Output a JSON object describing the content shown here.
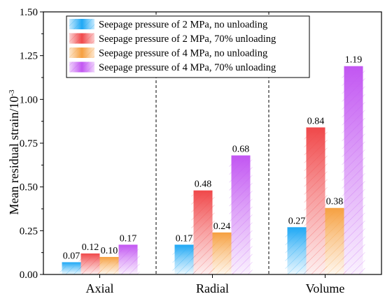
{
  "chart_data": {
    "type": "bar",
    "categories": [
      "Axial",
      "Radial",
      "Volume"
    ],
    "ylabel": "Mean residual strain/10",
    "ylabel_exponent": "-3",
    "xlabel": "",
    "ylim": [
      0,
      1.5
    ],
    "yticks": [
      "0.00",
      "0.25",
      "0.50",
      "0.75",
      "1.00",
      "1.25",
      "1.50"
    ],
    "grid": false,
    "legend_position": "top-left",
    "series": [
      {
        "name": "Seepage pressure of 2 MPa, no unloading",
        "values": [
          0.07,
          0.17,
          0.27
        ],
        "labels": [
          "0.07",
          "0.17",
          "0.27"
        ],
        "color": "#1ea8f5"
      },
      {
        "name": "Seepage pressure of 2 MPa, 70% unloading",
        "values": [
          0.12,
          0.48,
          0.84
        ],
        "labels": [
          "0.12",
          "0.48",
          "0.84"
        ],
        "color": "#f0484a"
      },
      {
        "name": "Seepage pressure of 4 MPa, no unloading",
        "values": [
          0.1,
          0.24,
          0.38
        ],
        "labels": [
          "0.10",
          "0.24",
          "0.38"
        ],
        "color": "#f6a040"
      },
      {
        "name": "Seepage pressure of 4 MPa, 70% unloading",
        "values": [
          0.17,
          0.68,
          1.19
        ],
        "labels": [
          "0.17",
          "0.68",
          "1.19"
        ],
        "color": "#c256f2"
      }
    ]
  }
}
